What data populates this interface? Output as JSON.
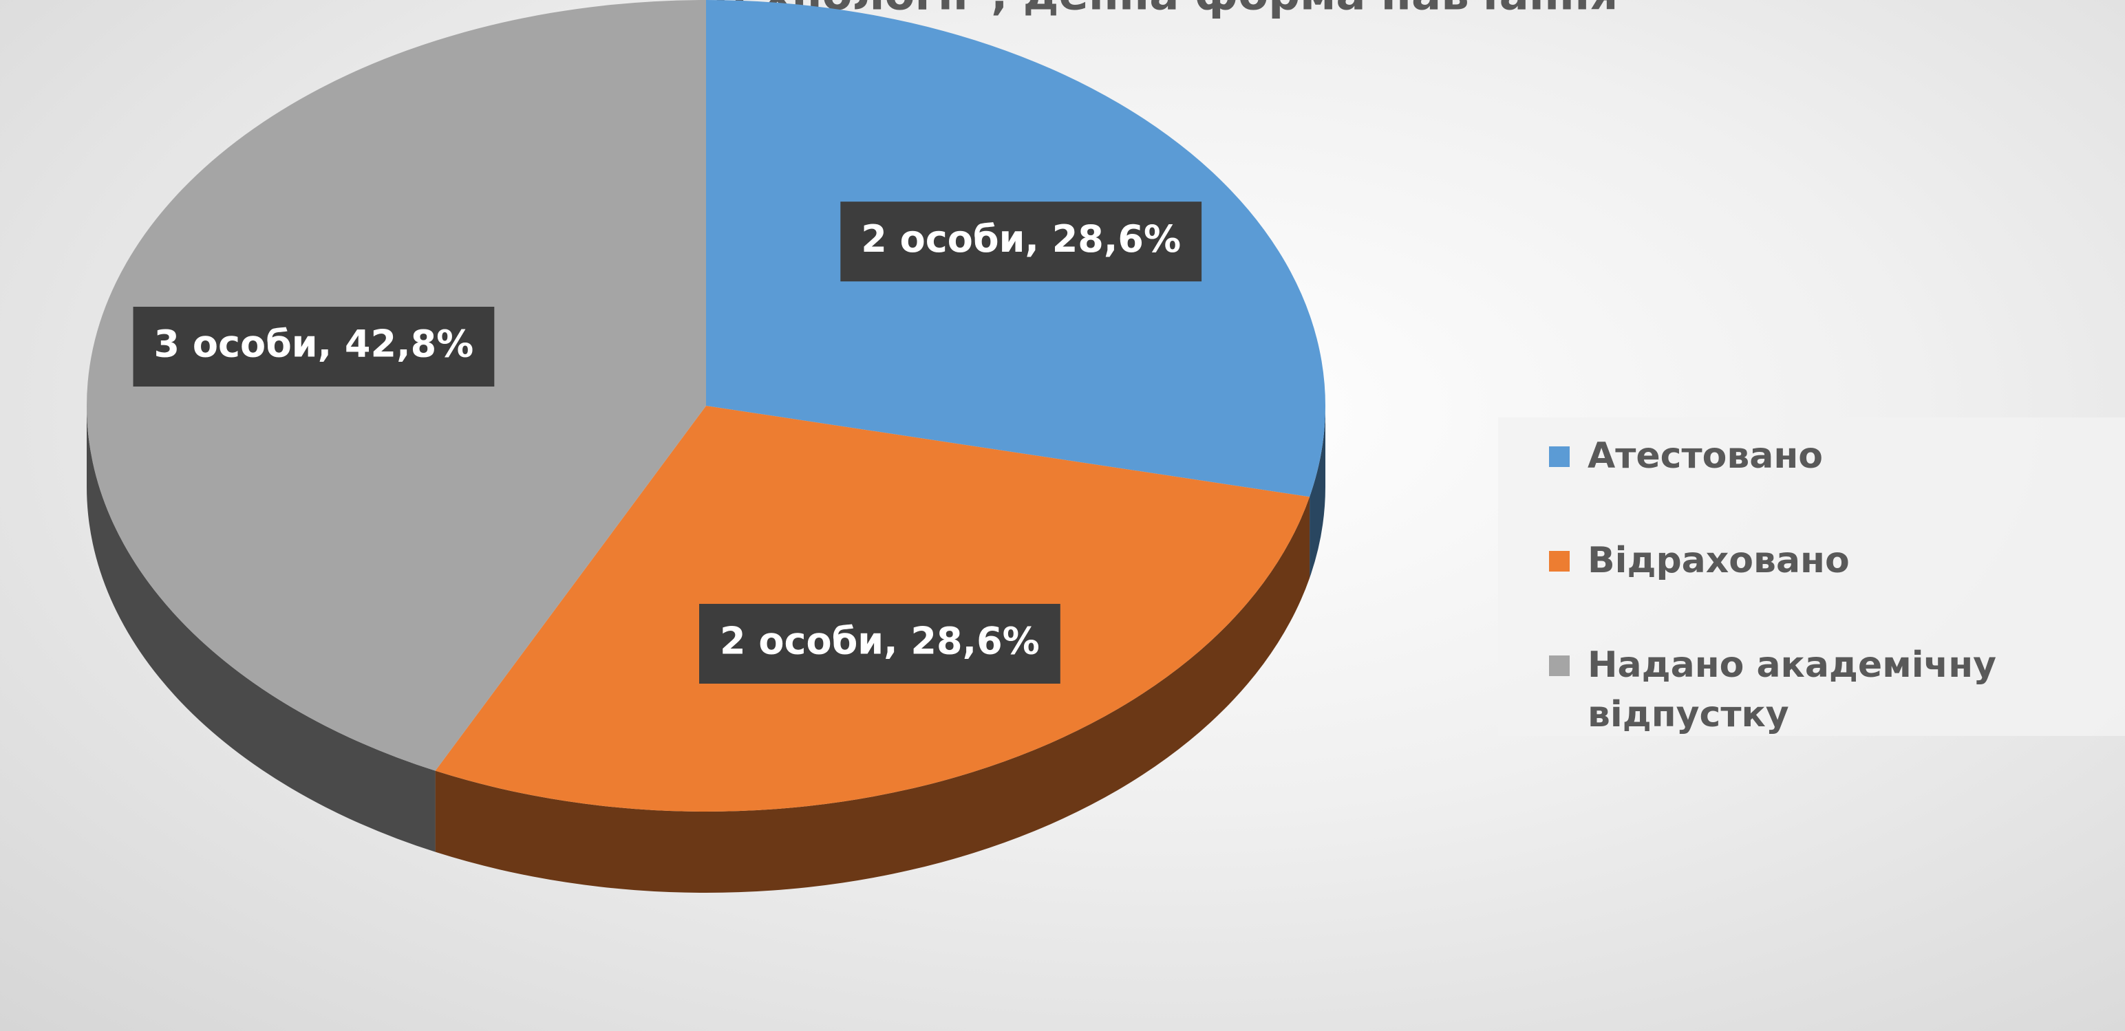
{
  "chart_data": {
    "type": "pie",
    "title": "технології\", денна форма навчання",
    "categories": [
      "Атестовано",
      "Відраховано",
      "Надано академічну відпустку"
    ],
    "values": [
      28.6,
      28.6,
      42.8
    ],
    "value_labels": [
      "2 особи, 28,6%",
      "2 особи, 28,6%",
      "3 особи, 42,8%"
    ],
    "colors": [
      "#5b9bd5",
      "#ed7d31",
      "#a5a5a5"
    ],
    "legend": "right"
  }
}
